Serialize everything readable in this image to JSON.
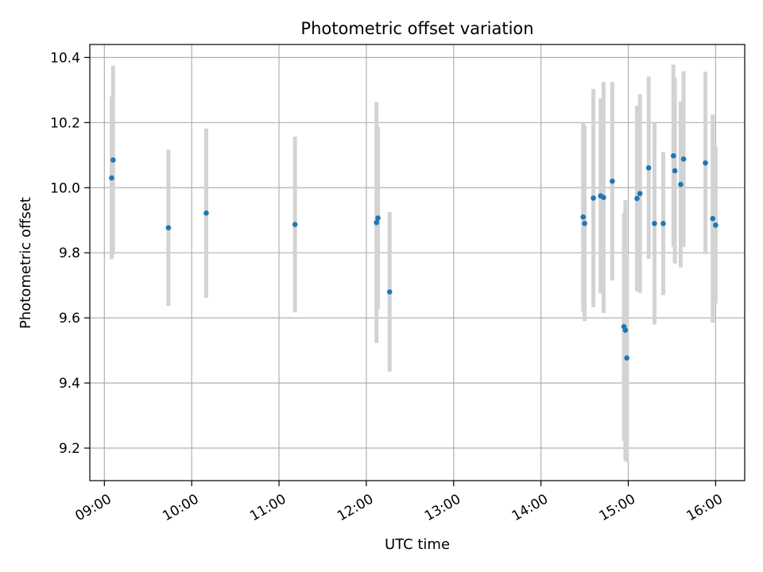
{
  "chart_data": {
    "type": "scatter",
    "title": "Photometric offset variation",
    "xlabel": "UTC time",
    "ylabel": "Photometric offset",
    "x_unit": "hours UTC",
    "xlim": [
      "08:50",
      "16:20"
    ],
    "ylim": [
      9.1,
      10.44
    ],
    "x_ticks": [
      "09:00",
      "10:00",
      "11:00",
      "12:00",
      "13:00",
      "14:00",
      "15:00",
      "16:00"
    ],
    "y_ticks": [
      "9.2",
      "9.4",
      "9.6",
      "9.8",
      "10.0",
      "10.2",
      "10.4"
    ],
    "grid": true,
    "colors": {
      "points": "#1f77b4",
      "errorbars": "#d3d3d3",
      "grid": "#b0b0b0"
    },
    "points": [
      {
        "x": "09:05",
        "y": 10.03,
        "err": 0.25
      },
      {
        "x": "09:06",
        "y": 10.085,
        "err": 0.29
      },
      {
        "x": "09:44",
        "y": 9.877,
        "err": 0.24
      },
      {
        "x": "10:10",
        "y": 9.922,
        "err": 0.26
      },
      {
        "x": "11:11",
        "y": 9.887,
        "err": 0.27
      },
      {
        "x": "12:07",
        "y": 9.893,
        "err": 0.37
      },
      {
        "x": "12:08",
        "y": 9.907,
        "err": 0.28
      },
      {
        "x": "12:16",
        "y": 9.68,
        "err": 0.245
      },
      {
        "x": "14:29",
        "y": 9.91,
        "err": 0.29
      },
      {
        "x": "14:30",
        "y": 9.89,
        "err": 0.3
      },
      {
        "x": "14:36",
        "y": 9.968,
        "err": 0.335
      },
      {
        "x": "14:41",
        "y": 9.975,
        "err": 0.3
      },
      {
        "x": "14:43",
        "y": 9.97,
        "err": 0.355
      },
      {
        "x": "14:49",
        "y": 10.02,
        "err": 0.305
      },
      {
        "x": "14:57",
        "y": 9.573,
        "err": 0.35
      },
      {
        "x": "14:58",
        "y": 9.562,
        "err": 0.4
      },
      {
        "x": "14:59",
        "y": 9.477,
        "err": 0.32
      },
      {
        "x": "15:06",
        "y": 9.967,
        "err": 0.285
      },
      {
        "x": "15:08",
        "y": 9.982,
        "err": 0.305
      },
      {
        "x": "15:14",
        "y": 10.061,
        "err": 0.28
      },
      {
        "x": "15:18",
        "y": 9.89,
        "err": 0.31
      },
      {
        "x": "15:24",
        "y": 9.89,
        "err": 0.22
      },
      {
        "x": "15:31",
        "y": 10.098,
        "err": 0.28
      },
      {
        "x": "15:32",
        "y": 10.052,
        "err": 0.285
      },
      {
        "x": "15:36",
        "y": 10.01,
        "err": 0.255
      },
      {
        "x": "15:38",
        "y": 10.088,
        "err": 0.27
      },
      {
        "x": "15:53",
        "y": 10.076,
        "err": 0.28
      },
      {
        "x": "15:58",
        "y": 9.905,
        "err": 0.32
      },
      {
        "x": "16:00",
        "y": 9.885,
        "err": 0.24
      }
    ]
  }
}
